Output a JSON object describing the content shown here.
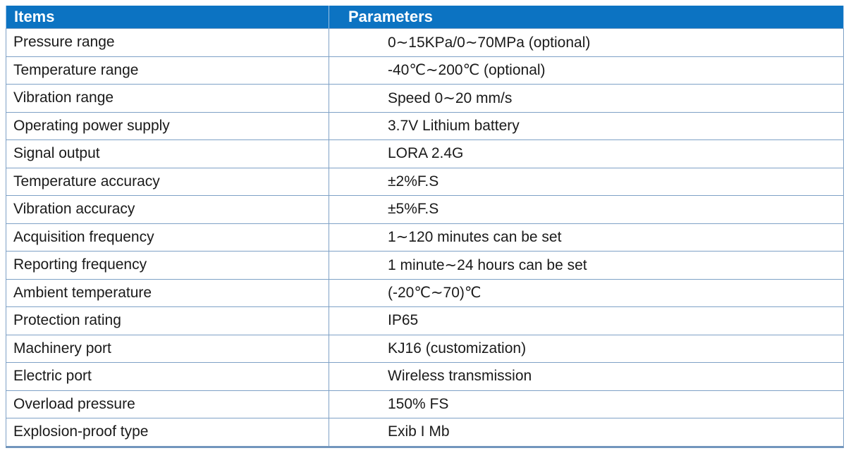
{
  "table": {
    "columns": [
      {
        "label": "Items"
      },
      {
        "label": "Parameters"
      }
    ],
    "rows": [
      {
        "item": "Pressure range",
        "param": "0∼15KPa/0∼70MPa (optional)"
      },
      {
        "item": "Temperature range",
        "param": "-40℃∼200℃ (optional)"
      },
      {
        "item": "Vibration range",
        "param": "Speed 0∼20 mm/s"
      },
      {
        "item": "Operating power supply",
        "param": "3.7V Lithium battery"
      },
      {
        "item": "Signal output",
        "param": "LORA 2.4G"
      },
      {
        "item": "Temperature accuracy",
        "param": "±2%F.S"
      },
      {
        "item": "Vibration accuracy",
        "param": "±5%F.S"
      },
      {
        "item": "Acquisition frequency",
        "param": "1∼120 minutes can be set"
      },
      {
        "item": "Reporting frequency",
        "param": "1 minute∼24 hours can be set"
      },
      {
        "item": "Ambient temperature",
        "param": "(-20℃∼70)℃"
      },
      {
        "item": "Protection rating",
        "param": "IP65"
      },
      {
        "item": "Machinery port",
        "param": "KJ16 (customization)"
      },
      {
        "item": "Electric port",
        "param": "Wireless transmission"
      },
      {
        "item": "Overload pressure",
        "param": "150% FS"
      },
      {
        "item": "Explosion-proof type",
        "param": "Exib I Mb"
      }
    ]
  },
  "colors": {
    "header_background": "#0c73c2",
    "header_text": "#ffffff",
    "grid_line": "#7ea1c6",
    "bottom_border": "#7296bd",
    "body_text": "#1a1a1a"
  }
}
